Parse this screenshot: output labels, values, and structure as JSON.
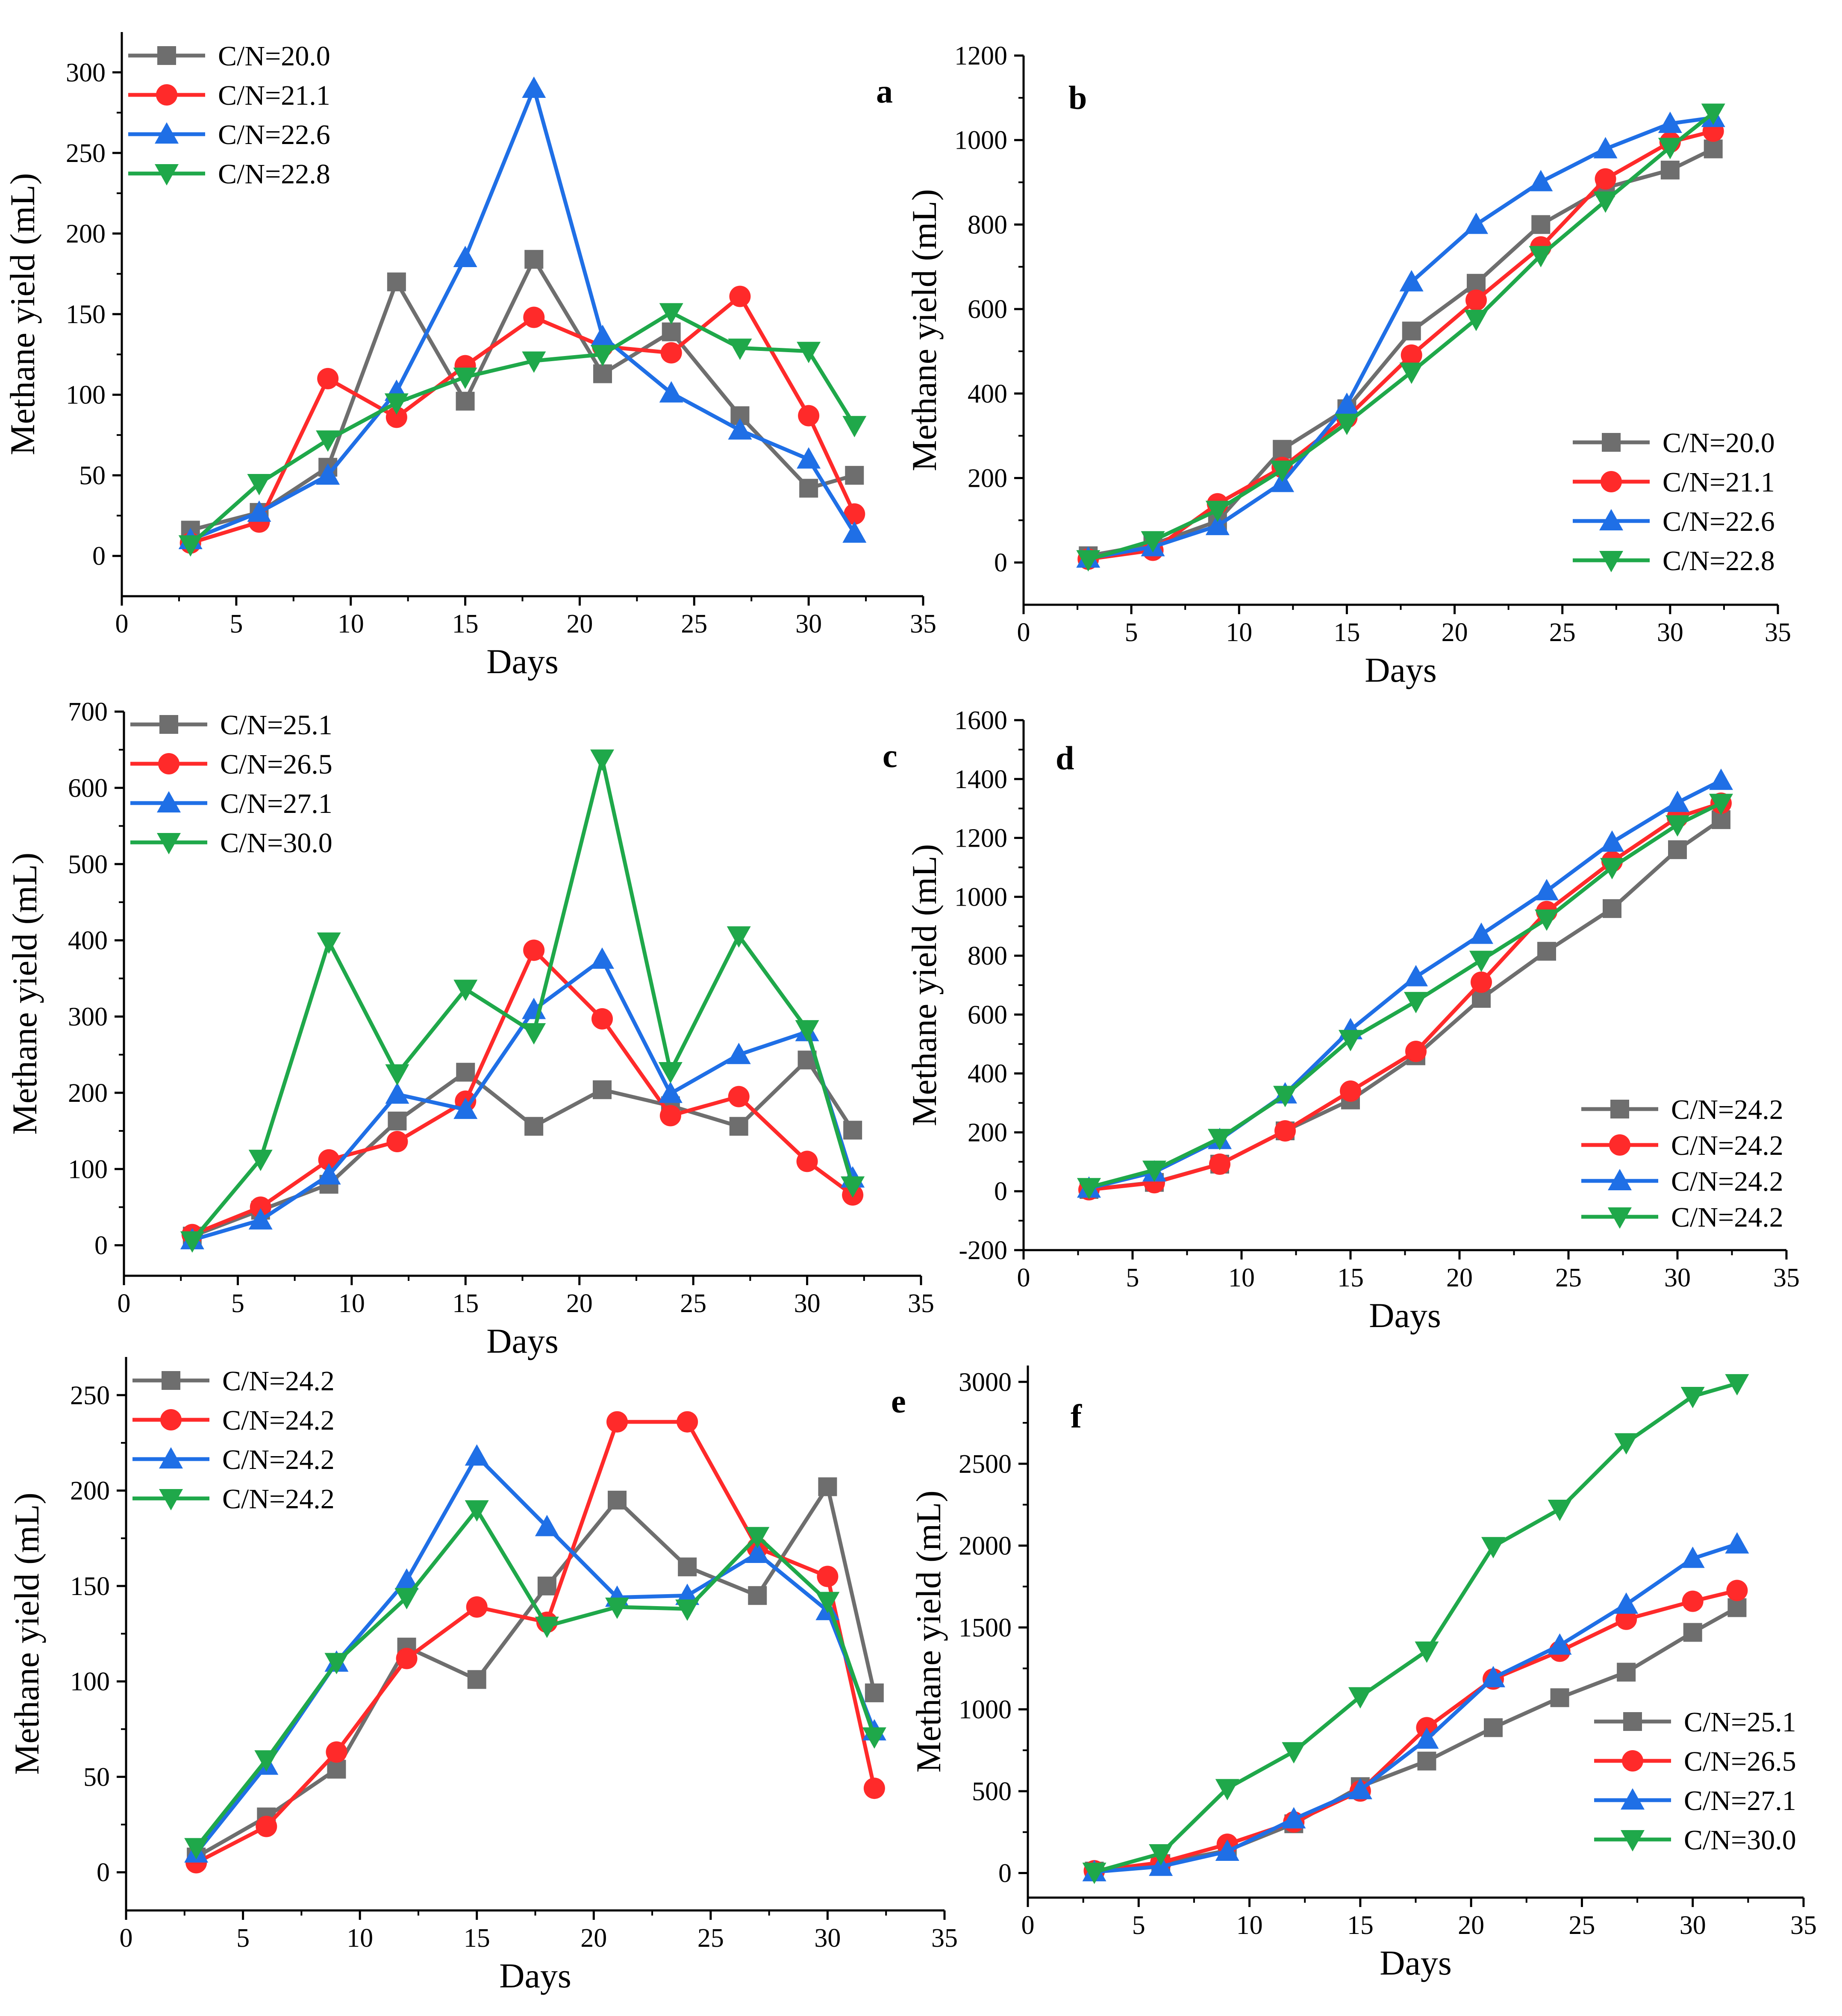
{
  "figure_caption": "",
  "colors": {
    "gray": "#6e6e6e",
    "red": "#ff2a2a",
    "blue": "#1f6fe6",
    "green": "#1fa84a",
    "axis": "#000000"
  },
  "chart_data": [
    {
      "id": "a",
      "type": "line",
      "letter": "a",
      "xlabel": "Days",
      "ylabel": "Methane yield (mL)",
      "xlim": [
        0,
        35
      ],
      "ylim": [
        -25,
        325
      ],
      "xticks": [
        0,
        5,
        10,
        15,
        20,
        25,
        30,
        35
      ],
      "yticks": [
        0,
        50,
        100,
        150,
        200,
        250,
        300
      ],
      "legend": "top-left",
      "x": [
        3,
        6,
        9,
        12,
        15,
        18,
        21,
        24,
        27,
        30,
        32
      ],
      "series": [
        {
          "name": "C/N=20.0",
          "color": "gray",
          "marker": "square",
          "values": [
            16,
            27,
            55,
            170,
            96,
            184,
            113,
            139,
            87,
            42,
            50
          ]
        },
        {
          "name": "C/N=21.1",
          "color": "red",
          "marker": "circle",
          "values": [
            8,
            21,
            110,
            86,
            118,
            148,
            130,
            126,
            161,
            87,
            26
          ]
        },
        {
          "name": "C/N=22.6",
          "color": "blue",
          "marker": "triangle-up",
          "values": [
            10,
            27,
            50,
            102,
            185,
            290,
            136,
            101,
            78,
            60,
            14
          ]
        },
        {
          "name": "C/N=22.8",
          "color": "green",
          "marker": "triangle-down",
          "values": [
            7,
            45,
            72,
            95,
            111,
            121,
            125,
            151,
            129,
            127,
            81
          ]
        }
      ]
    },
    {
      "id": "b",
      "type": "line",
      "letter": "b",
      "xlabel": "Days",
      "ylabel": "Methane yield (mL)",
      "xlim": [
        0,
        35
      ],
      "ylim": [
        -100,
        1200
      ],
      "xticks": [
        0,
        5,
        10,
        15,
        20,
        25,
        30,
        35
      ],
      "yticks": [
        0,
        200,
        400,
        600,
        800,
        1000,
        1200
      ],
      "legend": "bottom-right",
      "x": [
        3,
        6,
        9,
        12,
        15,
        18,
        21,
        24,
        27,
        30,
        32
      ],
      "series": [
        {
          "name": "C/N=20.0",
          "color": "gray",
          "marker": "square",
          "values": [
            16,
            43,
            98,
            268,
            364,
            548,
            661,
            800,
            887,
            929,
            979
          ]
        },
        {
          "name": "C/N=21.1",
          "color": "red",
          "marker": "circle",
          "values": [
            8,
            29,
            139,
            225,
            343,
            491,
            621,
            747,
            908,
            995,
            1021
          ]
        },
        {
          "name": "C/N=22.6",
          "color": "blue",
          "marker": "triangle-up",
          "values": [
            10,
            37,
            87,
            189,
            374,
            664,
            800,
            901,
            979,
            1039,
            1053
          ]
        },
        {
          "name": "C/N=22.8",
          "color": "green",
          "marker": "triangle-down",
          "values": [
            7,
            52,
            124,
            219,
            330,
            451,
            576,
            727,
            856,
            983,
            1064
          ]
        }
      ]
    },
    {
      "id": "c",
      "type": "line",
      "letter": "c",
      "xlabel": "Days",
      "ylabel": "Methane yield (mL)",
      "xlim": [
        0,
        35
      ],
      "ylim": [
        -40,
        700
      ],
      "xticks": [
        0,
        5,
        10,
        15,
        20,
        25,
        30,
        35
      ],
      "yticks": [
        0,
        100,
        200,
        300,
        400,
        500,
        600,
        700
      ],
      "legend": "top-left",
      "x": [
        3,
        6,
        9,
        12,
        15,
        18,
        21,
        24,
        27,
        30,
        32
      ],
      "series": [
        {
          "name": "C/N=25.1",
          "color": "gray",
          "marker": "square",
          "values": [
            12,
            46,
            80,
            163,
            227,
            156,
            204,
            183,
            156,
            243,
            151
          ]
        },
        {
          "name": "C/N=26.5",
          "color": "red",
          "marker": "circle",
          "values": [
            14,
            50,
            112,
            136,
            189,
            387,
            297,
            170,
            195,
            110,
            66
          ]
        },
        {
          "name": "C/N=27.1",
          "color": "blue",
          "marker": "triangle-up",
          "values": [
            7,
            33,
            92,
            198,
            178,
            309,
            375,
            199,
            250,
            280,
            88
          ]
        },
        {
          "name": "C/N=30.0",
          "color": "green",
          "marker": "triangle-down",
          "values": [
            6,
            113,
            398,
            225,
            336,
            279,
            638,
            228,
            406,
            283,
            78
          ]
        }
      ]
    },
    {
      "id": "d",
      "type": "line",
      "letter": "d",
      "xlabel": "Days",
      "ylabel": "Methane yield (mL)",
      "xlim": [
        0,
        35
      ],
      "ylim": [
        -200,
        1600
      ],
      "xticks": [
        0,
        5,
        10,
        15,
        20,
        25,
        30,
        35
      ],
      "yticks": [
        -200,
        0,
        200,
        400,
        600,
        800,
        1000,
        1200,
        1400,
        1600
      ],
      "legend": "bottom-right",
      "x": [
        3,
        6,
        9,
        12,
        15,
        18,
        21,
        24,
        27,
        30,
        32
      ],
      "series": [
        {
          "name": "C/N=24.2",
          "color": "gray",
          "marker": "square",
          "values": [
            6,
            30,
            92,
            205,
            310,
            460,
            655,
            815,
            960,
            1160,
            1262
          ]
        },
        {
          "name": "C/N=24.2",
          "color": "red",
          "marker": "circle",
          "values": [
            5,
            29,
            92,
            205,
            340,
            475,
            710,
            950,
            1120,
            1270,
            1318
          ]
        },
        {
          "name": "C/N=24.2",
          "color": "blue",
          "marker": "triangle-up",
          "values": [
            10,
            65,
            175,
            330,
            548,
            728,
            872,
            1020,
            1185,
            1320,
            1395
          ]
        },
        {
          "name": "C/N=24.2",
          "color": "green",
          "marker": "triangle-down",
          "values": [
            13,
            72,
            180,
            326,
            516,
            645,
            785,
            925,
            1100,
            1245,
            1318
          ]
        }
      ]
    },
    {
      "id": "e",
      "type": "line",
      "letter": "e",
      "xlabel": "Days",
      "ylabel": "Methane yield (mL)",
      "xlim": [
        0,
        35
      ],
      "ylim": [
        -20,
        270
      ],
      "xticks": [
        0,
        5,
        10,
        15,
        20,
        25,
        30,
        35
      ],
      "yticks": [
        0,
        50,
        100,
        150,
        200,
        250
      ],
      "legend": "top-left",
      "x": [
        3,
        6,
        9,
        12,
        15,
        18,
        21,
        24,
        27,
        30,
        32
      ],
      "series": [
        {
          "name": "C/N=24.2",
          "color": "gray",
          "marker": "square",
          "values": [
            8,
            29,
            54,
            118,
            101,
            150,
            195,
            160,
            145,
            202,
            94
          ]
        },
        {
          "name": "C/N=24.2",
          "color": "red",
          "marker": "circle",
          "values": [
            5,
            24,
            63,
            112,
            139,
            131,
            236,
            236,
            170,
            155,
            44
          ]
        },
        {
          "name": "C/N=24.2",
          "color": "blue",
          "marker": "triangle-up",
          "values": [
            10,
            56,
            110,
            153,
            218,
            181,
            144,
            145,
            167,
            137,
            74
          ]
        },
        {
          "name": "C/N=24.2",
          "color": "green",
          "marker": "triangle-down",
          "values": [
            13,
            59,
            110,
            144,
            190,
            129,
            139,
            138,
            176,
            142,
            71
          ]
        }
      ]
    },
    {
      "id": "f",
      "type": "line",
      "letter": "f",
      "xlabel": "Days",
      "ylabel": "Methane yield (mL)",
      "xlim": [
        0,
        35
      ],
      "ylim": [
        -150,
        3100
      ],
      "xticks": [
        0,
        5,
        10,
        15,
        20,
        25,
        30,
        35
      ],
      "yticks": [
        0,
        500,
        1000,
        1500,
        2000,
        2500,
        3000
      ],
      "legend": "bottom-right",
      "x": [
        3,
        6,
        9,
        12,
        15,
        18,
        21,
        24,
        27,
        30,
        32
      ],
      "series": [
        {
          "name": "C/N=25.1",
          "color": "gray",
          "marker": "square",
          "values": [
            12,
            58,
            138,
            301,
            528,
            684,
            888,
            1071,
            1227,
            1470,
            1621
          ]
        },
        {
          "name": "C/N=26.5",
          "color": "red",
          "marker": "circle",
          "values": [
            14,
            64,
            176,
            312,
            501,
            888,
            1185,
            1355,
            1550,
            1660,
            1726
          ]
        },
        {
          "name": "C/N=27.1",
          "color": "blue",
          "marker": "triangle-up",
          "values": [
            7,
            40,
            132,
            330,
            508,
            817,
            1192,
            1391,
            1641,
            1921,
            2009
          ]
        },
        {
          "name": "C/N=30.0",
          "color": "green",
          "marker": "triangle-down",
          "values": [
            6,
            119,
            517,
            742,
            1078,
            1357,
            1995,
            2223,
            2629,
            2912,
            2990
          ]
        }
      ]
    }
  ]
}
